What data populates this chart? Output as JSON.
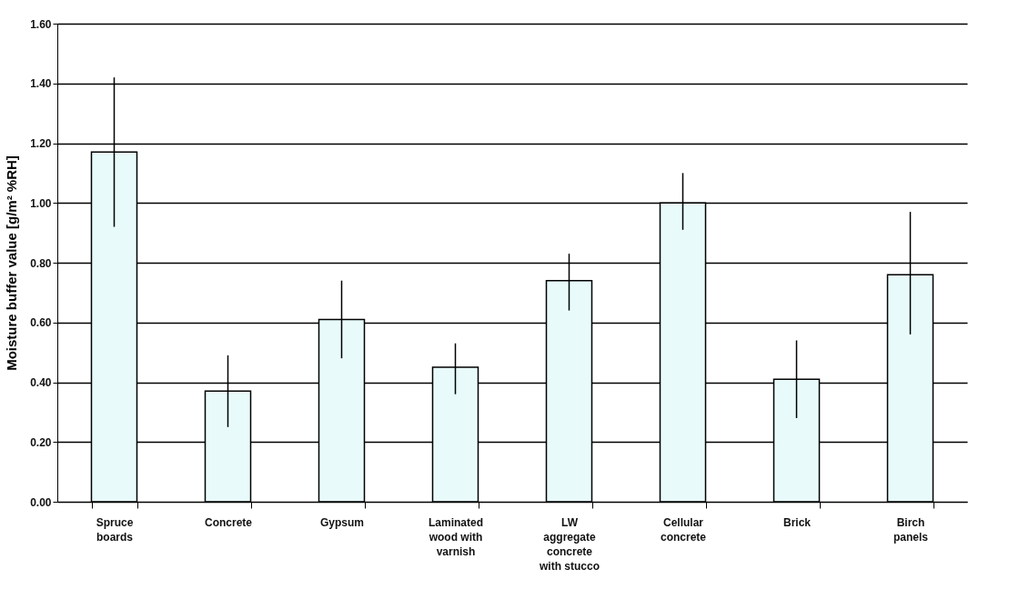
{
  "chart_data": {
    "type": "bar",
    "ylabel": "Moisture buffer value [g/m² %RH]",
    "categories": [
      "Spruce boards",
      "Concrete",
      "Gypsum",
      "Laminated wood with varnish",
      "LW aggregate concrete with stucco",
      "Cellular concrete",
      "Brick",
      "Birch panels"
    ],
    "values": [
      1.17,
      0.37,
      0.61,
      0.45,
      0.74,
      1.0,
      0.41,
      0.76
    ],
    "errors": [
      [
        0.92,
        1.42
      ],
      [
        0.25,
        0.49
      ],
      [
        0.48,
        0.74
      ],
      [
        0.36,
        0.53
      ],
      [
        0.64,
        0.83
      ],
      [
        0.91,
        1.1
      ],
      [
        0.28,
        0.54
      ],
      [
        0.56,
        0.97
      ]
    ],
    "color": "#e8fafa",
    "ylim": [
      0,
      1.6
    ],
    "yticks": [
      {
        "value": 0,
        "label": "0.00"
      },
      {
        "value": 0.2,
        "label": "0.20"
      },
      {
        "value": 0.4,
        "label": "0.40"
      },
      {
        "value": 0.6,
        "label": "0.60"
      },
      {
        "value": 0.8,
        "label": "0.80"
      },
      {
        "value": 1,
        "label": "1.00"
      },
      {
        "value": 1.2,
        "label": "1.20"
      },
      {
        "value": 1.4,
        "label": "1.40"
      },
      {
        "value": 1.6,
        "label": "1.60"
      }
    ],
    "grid": "y"
  }
}
